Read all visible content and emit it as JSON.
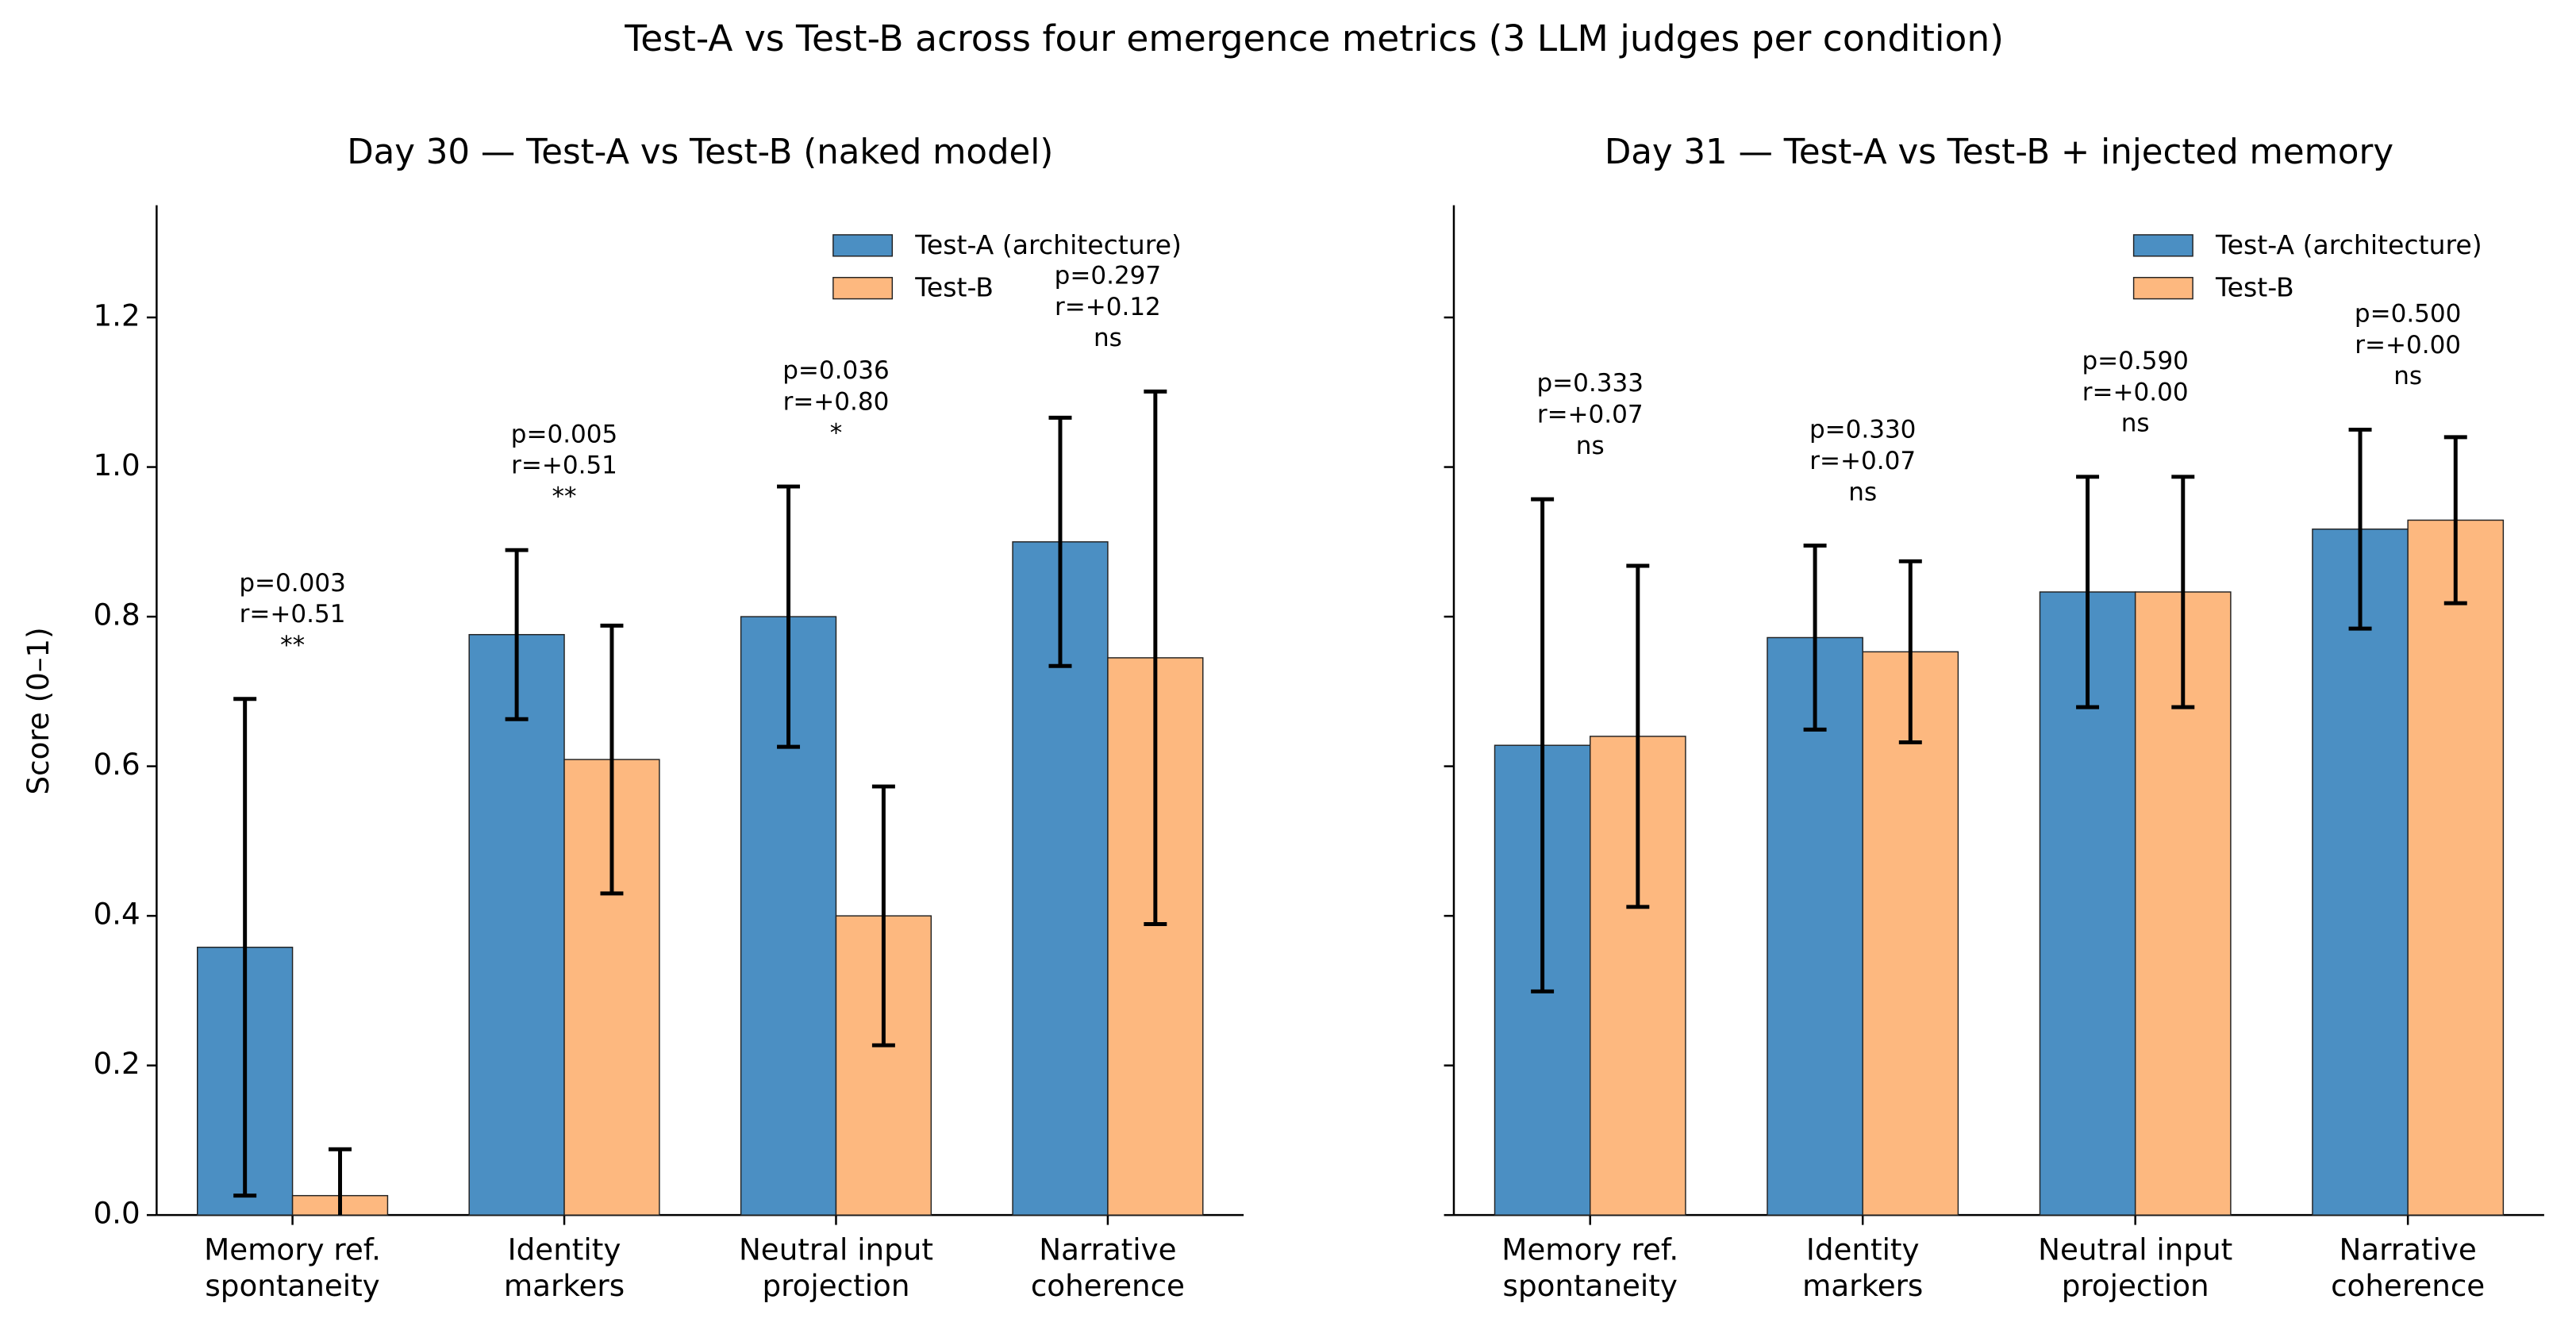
{
  "title": "Test-A vs Test-B across four emergence metrics (3 LLM judges per condition)",
  "chart_data": [
    {
      "type": "bar",
      "title": "Day 30 — Test-A vs Test-B (naked model)",
      "ylabel": "Score (0–1)",
      "categories": [
        "Memory ref.\nspontaneity",
        "Identity\nmarkers",
        "Neutral input\nprojection",
        "Narrative\ncoherence"
      ],
      "series": [
        {
          "name": "Test-A (architecture)",
          "color": "#4b8fc3",
          "values": [
            0.358,
            0.776,
            0.8,
            0.9
          ],
          "errors": [
            0.332,
            0.113,
            0.174,
            0.166
          ]
        },
        {
          "name": "Test-B",
          "color": "#fdb87f",
          "values": [
            0.026,
            0.609,
            0.4,
            0.745
          ],
          "errors": [
            0.062,
            0.179,
            0.173,
            0.356
          ]
        }
      ],
      "annotations": [
        [
          "p=0.003",
          "r=+0.51",
          "**"
        ],
        [
          "p=0.005",
          "r=+0.51",
          "**"
        ],
        [
          "p=0.036",
          "r=+0.80",
          "*"
        ],
        [
          "p=0.297",
          "r=+0.12",
          "ns"
        ]
      ],
      "ylim": [
        0,
        1.35
      ],
      "yticks": [
        {
          "value": 0,
          "label": "0.0"
        },
        0.2,
        0.4,
        0.6,
        0.8,
        {
          "value": 1,
          "label": "1.0"
        },
        1.2
      ],
      "ytick_labels": true,
      "legend": "upper right"
    },
    {
      "type": "bar",
      "title": "Day 31 — Test-A vs Test-B + injected memory",
      "categories": [
        "Memory ref.\nspontaneity",
        "Identity\nmarkers",
        "Neutral input\nprojection",
        "Narrative\ncoherence"
      ],
      "series": [
        {
          "name": "Test-A (architecture)",
          "color": "#4b8fc3",
          "values": [
            0.628,
            0.772,
            0.833,
            0.917
          ],
          "errors": [
            0.329,
            0.123,
            0.154,
            0.133
          ]
        },
        {
          "name": "Test-B",
          "color": "#fdb87f",
          "values": [
            0.64,
            0.753,
            0.833,
            0.929
          ],
          "errors": [
            0.228,
            0.121,
            0.154,
            0.111
          ]
        }
      ],
      "annotations": [
        [
          "p=0.333",
          "r=+0.07",
          "ns"
        ],
        [
          "p=0.330",
          "r=+0.07",
          "ns"
        ],
        [
          "p=0.590",
          "r=+0.00",
          "ns"
        ],
        [
          "p=0.500",
          "r=+0.00",
          "ns"
        ]
      ],
      "ylim": [
        0,
        1.35
      ],
      "yticks": [
        0,
        0.2,
        0.4,
        0.6,
        0.8,
        1,
        1.2
      ],
      "ytick_labels": false,
      "legend": "upper right"
    }
  ]
}
